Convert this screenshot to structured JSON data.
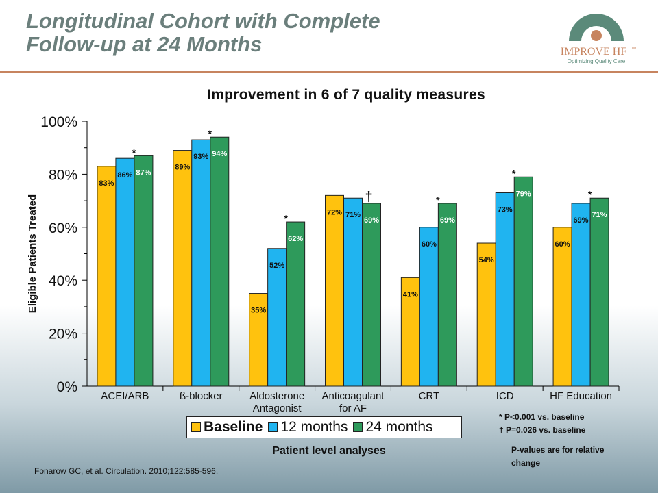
{
  "slide": {
    "title": "Longitudinal Cohort with Complete\nFollow-up at 24 Months",
    "logo_name": "IMPROVE HF",
    "logo_tm": "TM",
    "logo_tagline": "Optimizing Quality Care",
    "citation": "Fonarow GC, et al. Circulation. 2010;122:585-596.",
    "analysis_label": "Patient level analyses",
    "footnote_star": "* P<0.001 vs. baseline",
    "footnote_dagger": "† P=0.026 vs. baseline",
    "pvalue_note": "P-values are for relative change"
  },
  "colors": {
    "baseline": "#ffc20e",
    "months12": "#20b4f0",
    "months24": "#2e9a5b",
    "title": "#6b7f7c",
    "rule": "#c7845f",
    "logo_arc": "#5b8a7a"
  },
  "chart_data": {
    "type": "bar",
    "title": "Improvement in 6 of 7 quality measures",
    "ylabel": "Eligible Patients Treated",
    "xlabel": "",
    "ylim": [
      0,
      100
    ],
    "yticks": [
      "0%",
      "20%",
      "40%",
      "60%",
      "80%",
      "100%"
    ],
    "categories": [
      [
        "ACEI/ARB"
      ],
      [
        "ß-blocker"
      ],
      [
        "Aldosterone",
        "Antagonist"
      ],
      [
        "Anticoagulant",
        "for AF"
      ],
      [
        "CRT"
      ],
      [
        "ICD"
      ],
      [
        "HF Education"
      ]
    ],
    "series": [
      {
        "name": "Baseline",
        "values": [
          83,
          89,
          35,
          72,
          41,
          54,
          60
        ]
      },
      {
        "name": "12 months",
        "values": [
          86,
          93,
          52,
          71,
          60,
          73,
          69
        ]
      },
      {
        "name": "24 months",
        "values": [
          87,
          94,
          62,
          69,
          69,
          79,
          71
        ]
      }
    ],
    "significance": [
      "*",
      "*",
      "*",
      "†",
      "*",
      "*",
      "*"
    ],
    "legend_placement": "bottom"
  }
}
